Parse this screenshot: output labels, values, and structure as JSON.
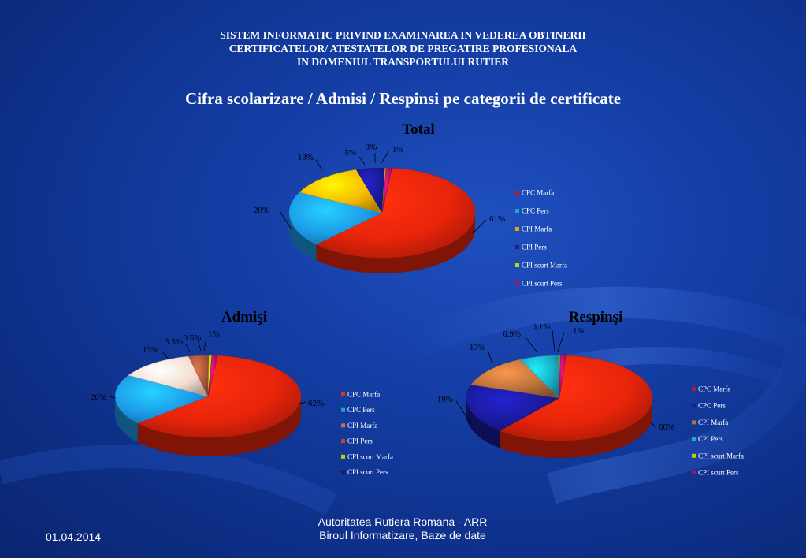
{
  "header": {
    "line1": "SISTEM INFORMATIC PRIVIND EXAMINAREA IN VEDEREA OBTINERII",
    "line2": "CERTIFICATELOR/ ATESTATELOR DE PREGATIRE PROFESIONALA",
    "line3": "IN DOMENIUL TRANSPORTULUI RUTIER"
  },
  "subtitle": "Cifra scolarizare / Admisi / Respinsi pe categorii de certificate",
  "colors": {
    "CPC Marfa": "#e8240a",
    "CPC Pers": "#1c9be8",
    "CPI Marfa": "#f5b800",
    "CPI Pers": "#1a1a9a",
    "CPI scurt Marfa": "#c8d800",
    "CPI scurt Pers": "#b0106a",
    "admisi_cpi_marfa": "#f4ddd0",
    "admisi_cpi_pers": "#a8583a",
    "respinsi_cpi_marfa": "#b9703a",
    "respinsi_cpi_pers": "#18b0c8"
  },
  "chart_data": [
    {
      "type": "pie",
      "title": "Total",
      "categories": [
        "CPC Marfa",
        "CPC Pers",
        "CPI Marfa",
        "CPI Pers",
        "CPI scurt Marfa",
        "CPI scurt Pers"
      ],
      "values": [
        61,
        20,
        13,
        5,
        0,
        1
      ],
      "labels": [
        "61%",
        "20%",
        "13%",
        "5%",
        "0%",
        "1%"
      ],
      "legend": [
        "CPC Marfa",
        "CPC Pers",
        "CPI Marfa",
        "CPI Pers",
        "CPI scurt Marfa",
        "CPI scurt Pers"
      ]
    },
    {
      "type": "pie",
      "title": "Admişi",
      "categories": [
        "CPC Marfa",
        "CPC Pers",
        "CPI Marfa",
        "CPI Pers",
        "CPI scurt Marfa",
        "CPI scurt Pers"
      ],
      "values": [
        62,
        20,
        13,
        3.5,
        0.5,
        1
      ],
      "labels": [
        "62%",
        "20%",
        "13%",
        "3.5%",
        "0.5%",
        "1%"
      ],
      "legend": [
        "CPC Marfa",
        "CPC Pers",
        "CPI Marfa",
        "CPI Pers",
        "CPI scurt Marfa",
        "CPI scurt Pers"
      ]
    },
    {
      "type": "pie",
      "title": "Respinşi",
      "categories": [
        "CPC Marfa",
        "CPC Pers",
        "CPI Marfa",
        "CPI Pers",
        "CPI scurt Marfa",
        "CPI scurt Pers"
      ],
      "values": [
        60,
        19,
        13,
        6.9,
        0.1,
        1
      ],
      "labels": [
        "60%",
        "19%",
        "13%",
        "6,9%",
        "0,1%",
        "1%"
      ],
      "legend": [
        "CPC Marfa",
        "CPC Pers",
        "CPI Marfa",
        "CPI Pers",
        "CPI scurt Marfa",
        "CPI scurt Pers"
      ]
    }
  ],
  "footer": {
    "org_line1": "Autoritatea Rutiera Romana - ARR",
    "org_line2": "Biroul  Informatizare, Baze de date",
    "date": "01.04.2014"
  }
}
